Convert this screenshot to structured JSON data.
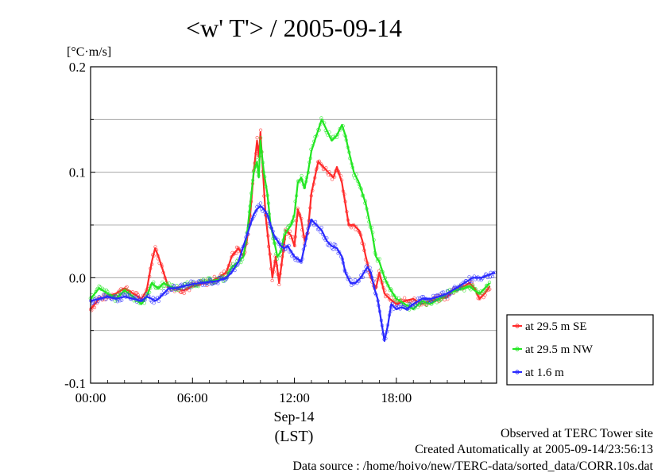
{
  "colors": {
    "se": "#ff2a2a",
    "nw": "#22e622",
    "low": "#2a2aff",
    "grid": "#9a9a9a",
    "axis": "#000000"
  },
  "chart_data": {
    "type": "line",
    "title": "<w' T'> / 2005-09-14",
    "unit_label": "[°C·m/s]",
    "xlabel": "(LST)",
    "date_label": "Sep-14",
    "xlim": [
      0,
      23.9
    ],
    "ylim": [
      -0.1,
      0.2
    ],
    "grid": true,
    "x_ticks": [
      {
        "value": 0,
        "label": "00:00"
      },
      {
        "value": 6,
        "label": "06:00"
      },
      {
        "value": 12,
        "label": "12:00"
      },
      {
        "value": 18,
        "label": "18:00"
      }
    ],
    "y_ticks": [
      {
        "value": -0.1,
        "label": "-0.1"
      },
      {
        "value": 0.0,
        "label": "0.0"
      },
      {
        "value": 0.1,
        "label": "0.1"
      },
      {
        "value": 0.2,
        "label": "0.2"
      }
    ],
    "legend_position": "right",
    "series": [
      {
        "name": "at 29.5 m SE",
        "color_key": "se",
        "points": [
          [
            0,
            -0.03
          ],
          [
            0.5,
            -0.02
          ],
          [
            1,
            -0.018
          ],
          [
            1.5,
            -0.015
          ],
          [
            2,
            -0.01
          ],
          [
            2.5,
            -0.015
          ],
          [
            3,
            -0.02
          ],
          [
            3.3,
            -0.012
          ],
          [
            3.6,
            0.015
          ],
          [
            3.8,
            0.028
          ],
          [
            4,
            0.02
          ],
          [
            4.3,
            0.005
          ],
          [
            4.6,
            -0.01
          ],
          [
            5,
            -0.01
          ],
          [
            5.5,
            -0.012
          ],
          [
            6,
            -0.008
          ],
          [
            6.5,
            -0.006
          ],
          [
            7,
            -0.004
          ],
          [
            7.5,
            0.0
          ],
          [
            8,
            0.005
          ],
          [
            8.3,
            0.02
          ],
          [
            8.7,
            0.028
          ],
          [
            9,
            0.02
          ],
          [
            9.2,
            0.035
          ],
          [
            9.4,
            0.06
          ],
          [
            9.6,
            0.1
          ],
          [
            9.8,
            0.13
          ],
          [
            9.9,
            0.115
          ],
          [
            10,
            0.138
          ],
          [
            10.15,
            0.1
          ],
          [
            10.3,
            0.06
          ],
          [
            10.5,
            0.03
          ],
          [
            10.7,
            0.0
          ],
          [
            10.9,
            0.02
          ],
          [
            11.1,
            -0.005
          ],
          [
            11.3,
            0.02
          ],
          [
            11.5,
            0.045
          ],
          [
            11.8,
            0.04
          ],
          [
            12,
            0.03
          ],
          [
            12.2,
            0.065
          ],
          [
            12.4,
            0.055
          ],
          [
            12.6,
            0.035
          ],
          [
            12.8,
            0.045
          ],
          [
            13,
            0.08
          ],
          [
            13.2,
            0.095
          ],
          [
            13.4,
            0.11
          ],
          [
            13.7,
            0.105
          ],
          [
            14,
            0.1
          ],
          [
            14.3,
            0.095
          ],
          [
            14.5,
            0.105
          ],
          [
            14.8,
            0.09
          ],
          [
            15,
            0.07
          ],
          [
            15.2,
            0.05
          ],
          [
            15.5,
            0.05
          ],
          [
            15.8,
            0.045
          ],
          [
            16,
            0.035
          ],
          [
            16.2,
            0.02
          ],
          [
            16.5,
            0.0
          ],
          [
            16.8,
            -0.01
          ],
          [
            17,
            0.005
          ],
          [
            17.3,
            -0.015
          ],
          [
            17.6,
            -0.02
          ],
          [
            18,
            -0.025
          ],
          [
            18.5,
            -0.022
          ],
          [
            19,
            -0.02
          ],
          [
            19.5,
            -0.025
          ],
          [
            20,
            -0.022
          ],
          [
            20.5,
            -0.02
          ],
          [
            21,
            -0.018
          ],
          [
            21.5,
            -0.01
          ],
          [
            22,
            -0.008
          ],
          [
            22.3,
            -0.005
          ],
          [
            22.6,
            -0.01
          ],
          [
            22.9,
            -0.02
          ],
          [
            23.2,
            -0.015
          ],
          [
            23.5,
            -0.008
          ]
        ]
      },
      {
        "name": "at 29.5 m NW",
        "color_key": "nw",
        "points": [
          [
            0,
            -0.02
          ],
          [
            0.5,
            -0.01
          ],
          [
            1,
            -0.015
          ],
          [
            1.5,
            -0.02
          ],
          [
            2,
            -0.012
          ],
          [
            2.5,
            -0.018
          ],
          [
            3,
            -0.025
          ],
          [
            3.3,
            -0.018
          ],
          [
            3.6,
            -0.005
          ],
          [
            3.8,
            -0.008
          ],
          [
            4,
            -0.01
          ],
          [
            4.3,
            -0.005
          ],
          [
            4.6,
            -0.008
          ],
          [
            5,
            -0.01
          ],
          [
            5.5,
            -0.008
          ],
          [
            6,
            -0.006
          ],
          [
            6.5,
            -0.005
          ],
          [
            7,
            -0.003
          ],
          [
            7.5,
            -0.002
          ],
          [
            8,
            0.0
          ],
          [
            8.3,
            0.01
          ],
          [
            8.7,
            0.015
          ],
          [
            9,
            0.02
          ],
          [
            9.2,
            0.04
          ],
          [
            9.4,
            0.07
          ],
          [
            9.6,
            0.1
          ],
          [
            9.8,
            0.11
          ],
          [
            9.9,
            0.095
          ],
          [
            10,
            0.13
          ],
          [
            10.2,
            0.1
          ],
          [
            10.4,
            0.08
          ],
          [
            10.6,
            0.05
          ],
          [
            10.8,
            0.035
          ],
          [
            11,
            0.02
          ],
          [
            11.2,
            0.025
          ],
          [
            11.4,
            0.04
          ],
          [
            11.6,
            0.045
          ],
          [
            11.8,
            0.05
          ],
          [
            12,
            0.06
          ],
          [
            12.2,
            0.09
          ],
          [
            12.4,
            0.095
          ],
          [
            12.6,
            0.085
          ],
          [
            12.8,
            0.1
          ],
          [
            13,
            0.12
          ],
          [
            13.3,
            0.135
          ],
          [
            13.6,
            0.15
          ],
          [
            13.9,
            0.14
          ],
          [
            14.2,
            0.13
          ],
          [
            14.5,
            0.135
          ],
          [
            14.8,
            0.145
          ],
          [
            15,
            0.135
          ],
          [
            15.2,
            0.12
          ],
          [
            15.5,
            0.1
          ],
          [
            15.8,
            0.09
          ],
          [
            16,
            0.08
          ],
          [
            16.2,
            0.07
          ],
          [
            16.4,
            0.055
          ],
          [
            16.6,
            0.04
          ],
          [
            16.8,
            0.02
          ],
          [
            17,
            0.015
          ],
          [
            17.3,
            0.0
          ],
          [
            17.6,
            -0.01
          ],
          [
            18,
            -0.02
          ],
          [
            18.5,
            -0.025
          ],
          [
            19,
            -0.03
          ],
          [
            19.5,
            -0.022
          ],
          [
            20,
            -0.025
          ],
          [
            20.5,
            -0.02
          ],
          [
            21,
            -0.015
          ],
          [
            21.5,
            -0.012
          ],
          [
            22,
            -0.01
          ],
          [
            22.3,
            -0.008
          ],
          [
            22.6,
            -0.012
          ],
          [
            22.9,
            -0.015
          ],
          [
            23.2,
            -0.01
          ],
          [
            23.5,
            -0.005
          ]
        ]
      },
      {
        "name": "at 1.6 m",
        "color_key": "low",
        "points": [
          [
            0,
            -0.022
          ],
          [
            0.5,
            -0.02
          ],
          [
            1,
            -0.018
          ],
          [
            1.5,
            -0.02
          ],
          [
            2,
            -0.018
          ],
          [
            2.5,
            -0.02
          ],
          [
            3,
            -0.022
          ],
          [
            3.3,
            -0.018
          ],
          [
            3.6,
            -0.02
          ],
          [
            3.8,
            -0.022
          ],
          [
            4,
            -0.02
          ],
          [
            4.3,
            -0.015
          ],
          [
            4.6,
            -0.01
          ],
          [
            5,
            -0.01
          ],
          [
            5.5,
            -0.008
          ],
          [
            6,
            -0.006
          ],
          [
            6.5,
            -0.005
          ],
          [
            7,
            -0.004
          ],
          [
            7.5,
            -0.003
          ],
          [
            8,
            0.0
          ],
          [
            8.3,
            0.005
          ],
          [
            8.7,
            0.015
          ],
          [
            9,
            0.03
          ],
          [
            9.2,
            0.04
          ],
          [
            9.4,
            0.05
          ],
          [
            9.6,
            0.06
          ],
          [
            9.8,
            0.065
          ],
          [
            10,
            0.068
          ],
          [
            10.2,
            0.065
          ],
          [
            10.4,
            0.06
          ],
          [
            10.6,
            0.05
          ],
          [
            10.8,
            0.04
          ],
          [
            11,
            0.035
          ],
          [
            11.2,
            0.03
          ],
          [
            11.4,
            0.028
          ],
          [
            11.6,
            0.03
          ],
          [
            11.8,
            0.025
          ],
          [
            12,
            0.02
          ],
          [
            12.2,
            0.018
          ],
          [
            12.4,
            0.015
          ],
          [
            12.6,
            0.03
          ],
          [
            12.8,
            0.045
          ],
          [
            13,
            0.055
          ],
          [
            13.3,
            0.05
          ],
          [
            13.6,
            0.045
          ],
          [
            13.9,
            0.035
          ],
          [
            14.2,
            0.03
          ],
          [
            14.5,
            0.028
          ],
          [
            14.8,
            0.02
          ],
          [
            15,
            0.005
          ],
          [
            15.3,
            -0.005
          ],
          [
            15.6,
            -0.005
          ],
          [
            15.9,
            0.0
          ],
          [
            16.1,
            0.005
          ],
          [
            16.3,
            0.01
          ],
          [
            16.5,
            0.005
          ],
          [
            16.7,
            -0.01
          ],
          [
            16.9,
            -0.02
          ],
          [
            17.1,
            -0.04
          ],
          [
            17.3,
            -0.06
          ],
          [
            17.5,
            -0.045
          ],
          [
            17.7,
            -0.025
          ],
          [
            18,
            -0.03
          ],
          [
            18.3,
            -0.028
          ],
          [
            18.6,
            -0.03
          ],
          [
            19,
            -0.025
          ],
          [
            19.5,
            -0.02
          ],
          [
            20,
            -0.02
          ],
          [
            20.5,
            -0.018
          ],
          [
            21,
            -0.015
          ],
          [
            21.5,
            -0.01
          ],
          [
            22,
            -0.005
          ],
          [
            22.5,
            0.0
          ],
          [
            23,
            0.0
          ],
          [
            23.5,
            0.003
          ],
          [
            23.8,
            0.005
          ]
        ]
      }
    ]
  },
  "footer": {
    "line1": "Observed at TERC Tower site",
    "line2": "Created Automatically at 2005-09-14/23:56:13",
    "line3": "Data source : /home/hoivo/new/TERC-data/sorted_data/CORR.10s.dat"
  }
}
